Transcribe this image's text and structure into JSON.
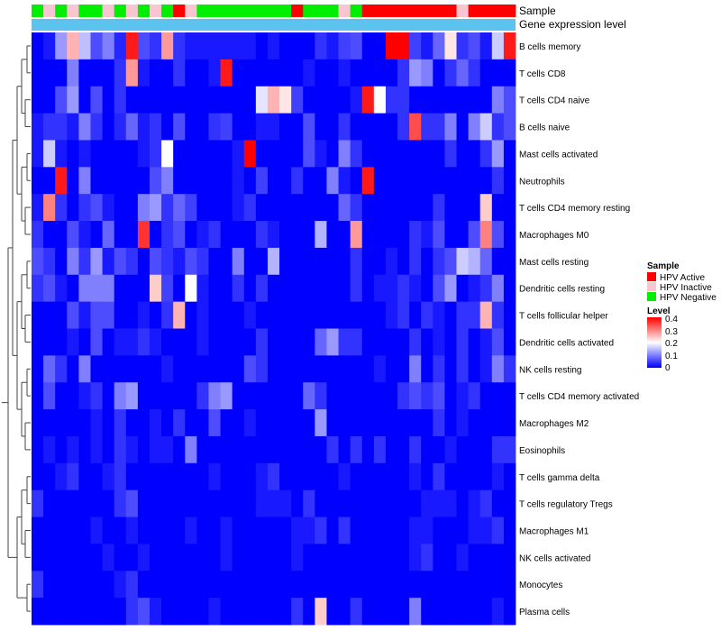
{
  "chart_data": {
    "type": "heatmap",
    "annotation_rows": [
      "Sample",
      "Gene expression level"
    ],
    "rows": [
      "B cells memory",
      "T cells CD8",
      "T cells CD4 naive",
      "B cells naive",
      "Mast cells activated",
      "Neutrophils",
      "T cells CD4 memory resting",
      "Macrophages M0",
      "Mast cells resting",
      "Dendritic cells resting",
      "T cells follicular helper",
      "Dendritic cells activated",
      "NK cells resting",
      "T cells CD4 memory activated",
      "Macrophages M2",
      "Eosinophils",
      "T cells gamma delta",
      "T cells regulatory  Tregs",
      "Macrophages M1",
      "NK cells activated",
      "Monocytes",
      "Plasma cells"
    ],
    "sample_groups": [
      "N",
      "I",
      "N",
      "I",
      "N",
      "N",
      "I",
      "N",
      "I",
      "N",
      "I",
      "N",
      "A",
      "I",
      "N",
      "N",
      "N",
      "N",
      "N",
      "N",
      "N",
      "N",
      "A",
      "N",
      "N",
      "N",
      "I",
      "N",
      "A",
      "A",
      "A",
      "A",
      "A",
      "A",
      "A",
      "A",
      "I",
      "A",
      "A",
      "A",
      "A"
    ],
    "values": [
      [
        0.0,
        0.02,
        0.12,
        0.26,
        0.15,
        0.06,
        0.1,
        0.03,
        0.38,
        0.06,
        0.04,
        0.28,
        0.04,
        0.02,
        0.02,
        0.02,
        0.02,
        0.02,
        0.02,
        0.0,
        0.02,
        0.0,
        0.0,
        0.0,
        0.04,
        0.02,
        0.05,
        0.06,
        0.0,
        0.0,
        0.4,
        0.4,
        0.05,
        0.02,
        0.08,
        0.22,
        0.04,
        0.06,
        0.02,
        0.16,
        0.38
      ],
      [
        0.0,
        0.0,
        0.0,
        0.1,
        0.0,
        0.0,
        0.0,
        0.04,
        0.28,
        0.02,
        0.0,
        0.0,
        0.04,
        0.0,
        0.0,
        0.02,
        0.38,
        0.0,
        0.0,
        0.0,
        0.0,
        0.0,
        0.0,
        0.02,
        0.0,
        0.0,
        0.02,
        0.0,
        0.0,
        0.0,
        0.0,
        0.04,
        0.12,
        0.1,
        0.0,
        0.04,
        0.08,
        0.04,
        0.0,
        0.0,
        0.0
      ],
      [
        0.0,
        0.0,
        0.06,
        0.12,
        0.0,
        0.06,
        0.0,
        0.04,
        0.0,
        0.0,
        0.0,
        0.0,
        0.0,
        0.0,
        0.0,
        0.0,
        0.0,
        0.0,
        0.0,
        0.18,
        0.26,
        0.22,
        0.05,
        0.0,
        0.0,
        0.0,
        0.0,
        0.02,
        0.38,
        0.2,
        0.04,
        0.04,
        0.0,
        0.0,
        0.0,
        0.0,
        0.0,
        0.0,
        0.0,
        0.1,
        0.06
      ],
      [
        0.02,
        0.04,
        0.04,
        0.02,
        0.1,
        0.04,
        0.0,
        0.03,
        0.08,
        0.02,
        0.04,
        0.0,
        0.06,
        0.0,
        0.0,
        0.04,
        0.05,
        0.0,
        0.0,
        0.02,
        0.02,
        0.0,
        0.0,
        0.06,
        0.0,
        0.0,
        0.04,
        0.0,
        0.0,
        0.0,
        0.0,
        0.04,
        0.34,
        0.04,
        0.04,
        0.1,
        0.0,
        0.1,
        0.16,
        0.04,
        0.06
      ],
      [
        0.02,
        0.16,
        0.02,
        0.0,
        0.02,
        0.0,
        0.0,
        0.0,
        0.0,
        0.02,
        0.04,
        0.2,
        0.0,
        0.0,
        0.0,
        0.0,
        0.0,
        0.02,
        0.4,
        0.0,
        0.0,
        0.0,
        0.0,
        0.06,
        0.02,
        0.0,
        0.1,
        0.04,
        0.0,
        0.0,
        0.0,
        0.0,
        0.0,
        0.0,
        0.0,
        0.04,
        0.0,
        0.0,
        0.04,
        0.12,
        0.0
      ],
      [
        0.0,
        0.0,
        0.38,
        0.0,
        0.1,
        0.0,
        0.0,
        0.0,
        0.0,
        0.0,
        0.06,
        0.1,
        0.0,
        0.0,
        0.0,
        0.0,
        0.0,
        0.02,
        0.0,
        0.05,
        0.0,
        0.0,
        0.04,
        0.0,
        0.0,
        0.1,
        0.02,
        0.0,
        0.38,
        0.0,
        0.0,
        0.0,
        0.0,
        0.0,
        0.0,
        0.0,
        0.0,
        0.0,
        0.0,
        0.04,
        0.0
      ],
      [
        0.02,
        0.3,
        0.04,
        0.0,
        0.04,
        0.06,
        0.02,
        0.0,
        0.0,
        0.1,
        0.12,
        0.04,
        0.08,
        0.05,
        0.0,
        0.0,
        0.0,
        0.02,
        0.04,
        0.0,
        0.0,
        0.0,
        0.0,
        0.0,
        0.0,
        0.0,
        0.08,
        0.04,
        0.0,
        0.0,
        0.0,
        0.0,
        0.0,
        0.0,
        0.04,
        0.0,
        0.0,
        0.0,
        0.24,
        0.0,
        0.0
      ],
      [
        0.04,
        0.0,
        0.0,
        0.06,
        0.02,
        0.0,
        0.08,
        0.0,
        0.0,
        0.36,
        0.0,
        0.04,
        0.06,
        0.0,
        0.02,
        0.04,
        0.0,
        0.0,
        0.0,
        0.04,
        0.02,
        0.0,
        0.0,
        0.0,
        0.14,
        0.0,
        0.0,
        0.28,
        0.0,
        0.0,
        0.0,
        0.0,
        0.04,
        0.02,
        0.06,
        0.0,
        0.0,
        0.06,
        0.3,
        0.06,
        0.0
      ],
      [
        0.06,
        0.04,
        0.0,
        0.1,
        0.04,
        0.12,
        0.02,
        0.06,
        0.04,
        0.0,
        0.06,
        0.04,
        0.02,
        0.06,
        0.04,
        0.0,
        0.0,
        0.1,
        0.0,
        0.0,
        0.14,
        0.0,
        0.0,
        0.0,
        0.0,
        0.0,
        0.0,
        0.04,
        0.0,
        0.0,
        0.02,
        0.0,
        0.04,
        0.0,
        0.04,
        0.06,
        0.16,
        0.14,
        0.08,
        0.0,
        0.0
      ],
      [
        0.04,
        0.06,
        0.02,
        0.0,
        0.1,
        0.1,
        0.1,
        0.0,
        0.0,
        0.0,
        0.24,
        0.05,
        0.0,
        0.2,
        0.02,
        0.0,
        0.0,
        0.04,
        0.0,
        0.04,
        0.0,
        0.0,
        0.0,
        0.0,
        0.0,
        0.0,
        0.0,
        0.04,
        0.0,
        0.02,
        0.02,
        0.04,
        0.02,
        0.0,
        0.06,
        0.12,
        0.0,
        0.02,
        0.04,
        0.1,
        0.0
      ],
      [
        0.0,
        0.0,
        0.0,
        0.06,
        0.02,
        0.06,
        0.06,
        0.0,
        0.0,
        0.02,
        0.0,
        0.04,
        0.26,
        0.0,
        0.02,
        0.0,
        0.0,
        0.0,
        0.02,
        0.0,
        0.0,
        0.0,
        0.0,
        0.0,
        0.0,
        0.0,
        0.0,
        0.0,
        0.0,
        0.0,
        0.02,
        0.04,
        0.0,
        0.04,
        0.02,
        0.0,
        0.04,
        0.04,
        0.26,
        0.04,
        0.0
      ],
      [
        0.0,
        0.0,
        0.0,
        0.02,
        0.0,
        0.06,
        0.0,
        0.02,
        0.02,
        0.04,
        0.02,
        0.0,
        0.0,
        0.0,
        0.02,
        0.0,
        0.0,
        0.0,
        0.0,
        0.04,
        0.0,
        0.0,
        0.0,
        0.0,
        0.08,
        0.12,
        0.04,
        0.04,
        0.0,
        0.0,
        0.0,
        0.0,
        0.04,
        0.0,
        0.02,
        0.0,
        0.04,
        0.0,
        0.02,
        0.06,
        0.0
      ],
      [
        0.0,
        0.08,
        0.04,
        0.0,
        0.1,
        0.0,
        0.0,
        0.0,
        0.0,
        0.0,
        0.0,
        0.02,
        0.0,
        0.0,
        0.0,
        0.0,
        0.0,
        0.0,
        0.06,
        0.04,
        0.0,
        0.0,
        0.0,
        0.0,
        0.0,
        0.0,
        0.0,
        0.0,
        0.0,
        0.02,
        0.0,
        0.0,
        0.1,
        0.0,
        0.04,
        0.0,
        0.04,
        0.0,
        0.02,
        0.1,
        0.04
      ],
      [
        0.0,
        0.06,
        0.0,
        0.0,
        0.02,
        0.04,
        0.0,
        0.1,
        0.12,
        0.0,
        0.0,
        0.0,
        0.0,
        0.0,
        0.04,
        0.1,
        0.12,
        0.0,
        0.0,
        0.0,
        0.0,
        0.0,
        0.0,
        0.08,
        0.04,
        0.0,
        0.0,
        0.0,
        0.0,
        0.0,
        0.0,
        0.04,
        0.06,
        0.04,
        0.06,
        0.0,
        0.02,
        0.04,
        0.0,
        0.0,
        0.0
      ],
      [
        0.0,
        0.0,
        0.0,
        0.0,
        0.0,
        0.02,
        0.0,
        0.04,
        0.0,
        0.0,
        0.02,
        0.0,
        0.04,
        0.0,
        0.0,
        0.06,
        0.0,
        0.0,
        0.02,
        0.0,
        0.0,
        0.0,
        0.0,
        0.0,
        0.12,
        0.0,
        0.0,
        0.0,
        0.0,
        0.0,
        0.0,
        0.0,
        0.0,
        0.0,
        0.04,
        0.0,
        0.02,
        0.0,
        0.0,
        0.0,
        0.0
      ],
      [
        0.0,
        0.02,
        0.0,
        0.02,
        0.0,
        0.02,
        0.0,
        0.04,
        0.02,
        0.0,
        0.02,
        0.02,
        0.0,
        0.1,
        0.0,
        0.0,
        0.0,
        0.0,
        0.0,
        0.0,
        0.0,
        0.0,
        0.0,
        0.0,
        0.0,
        0.04,
        0.0,
        0.04,
        0.0,
        0.04,
        0.0,
        0.0,
        0.04,
        0.0,
        0.0,
        0.02,
        0.0,
        0.0,
        0.0,
        0.04,
        0.04
      ],
      [
        0.0,
        0.0,
        0.02,
        0.04,
        0.0,
        0.0,
        0.02,
        0.04,
        0.0,
        0.0,
        0.0,
        0.0,
        0.0,
        0.0,
        0.0,
        0.02,
        0.0,
        0.0,
        0.0,
        0.02,
        0.04,
        0.0,
        0.0,
        0.0,
        0.0,
        0.0,
        0.02,
        0.0,
        0.0,
        0.0,
        0.0,
        0.0,
        0.02,
        0.0,
        0.04,
        0.0,
        0.0,
        0.0,
        0.0,
        0.02,
        0.0
      ],
      [
        0.04,
        0.0,
        0.0,
        0.0,
        0.0,
        0.0,
        0.0,
        0.04,
        0.06,
        0.0,
        0.0,
        0.0,
        0.0,
        0.0,
        0.0,
        0.0,
        0.0,
        0.0,
        0.0,
        0.02,
        0.02,
        0.02,
        0.0,
        0.04,
        0.0,
        0.0,
        0.0,
        0.0,
        0.0,
        0.0,
        0.0,
        0.0,
        0.0,
        0.02,
        0.02,
        0.02,
        0.0,
        0.02,
        0.04,
        0.0,
        0.0
      ],
      [
        0.0,
        0.0,
        0.0,
        0.0,
        0.0,
        0.02,
        0.0,
        0.0,
        0.02,
        0.0,
        0.0,
        0.0,
        0.0,
        0.02,
        0.0,
        0.0,
        0.02,
        0.0,
        0.0,
        0.0,
        0.0,
        0.0,
        0.02,
        0.02,
        0.04,
        0.0,
        0.04,
        0.0,
        0.0,
        0.0,
        0.0,
        0.0,
        0.02,
        0.02,
        0.0,
        0.0,
        0.0,
        0.02,
        0.02,
        0.04,
        0.0
      ],
      [
        0.0,
        0.0,
        0.0,
        0.0,
        0.0,
        0.0,
        0.02,
        0.0,
        0.0,
        0.02,
        0.0,
        0.0,
        0.0,
        0.0,
        0.0,
        0.0,
        0.02,
        0.0,
        0.0,
        0.0,
        0.0,
        0.0,
        0.02,
        0.0,
        0.0,
        0.0,
        0.0,
        0.0,
        0.0,
        0.0,
        0.0,
        0.0,
        0.02,
        0.04,
        0.0,
        0.0,
        0.02,
        0.0,
        0.0,
        0.0,
        0.0
      ],
      [
        0.04,
        0.0,
        0.0,
        0.0,
        0.0,
        0.0,
        0.0,
        0.02,
        0.04,
        0.0,
        0.0,
        0.0,
        0.0,
        0.0,
        0.0,
        0.0,
        0.0,
        0.0,
        0.0,
        0.0,
        0.0,
        0.0,
        0.0,
        0.0,
        0.0,
        0.0,
        0.0,
        0.0,
        0.0,
        0.0,
        0.0,
        0.0,
        0.0,
        0.0,
        0.0,
        0.0,
        0.0,
        0.0,
        0.0,
        0.0,
        0.0
      ],
      [
        0.0,
        0.0,
        0.0,
        0.0,
        0.0,
        0.0,
        0.0,
        0.0,
        0.04,
        0.06,
        0.02,
        0.0,
        0.0,
        0.0,
        0.0,
        0.02,
        0.0,
        0.0,
        0.0,
        0.0,
        0.0,
        0.0,
        0.04,
        0.0,
        0.24,
        0.0,
        0.0,
        0.04,
        0.0,
        0.0,
        0.0,
        0.0,
        0.1,
        0.0,
        0.0,
        0.0,
        0.0,
        0.0,
        0.0,
        0.02,
        0.0
      ]
    ],
    "legend_sample": {
      "title": "Sample",
      "entries": [
        {
          "key": "A",
          "label": "HPV Active",
          "color": "#ff0000"
        },
        {
          "key": "I",
          "label": "HPV Inactive",
          "color": "#f7c6d0"
        },
        {
          "key": "N",
          "label": "HPV Negative",
          "color": "#00ee00"
        }
      ]
    },
    "legend_level": {
      "title": "Level",
      "ticks": [
        "0.4",
        "0.3",
        "0.2",
        "0.1",
        "0"
      ],
      "range": [
        0,
        0.4
      ],
      "colors": [
        "#0000ff",
        "#ffffff",
        "#ff0000"
      ]
    },
    "gene_expression_color": "#5bc3ee"
  }
}
